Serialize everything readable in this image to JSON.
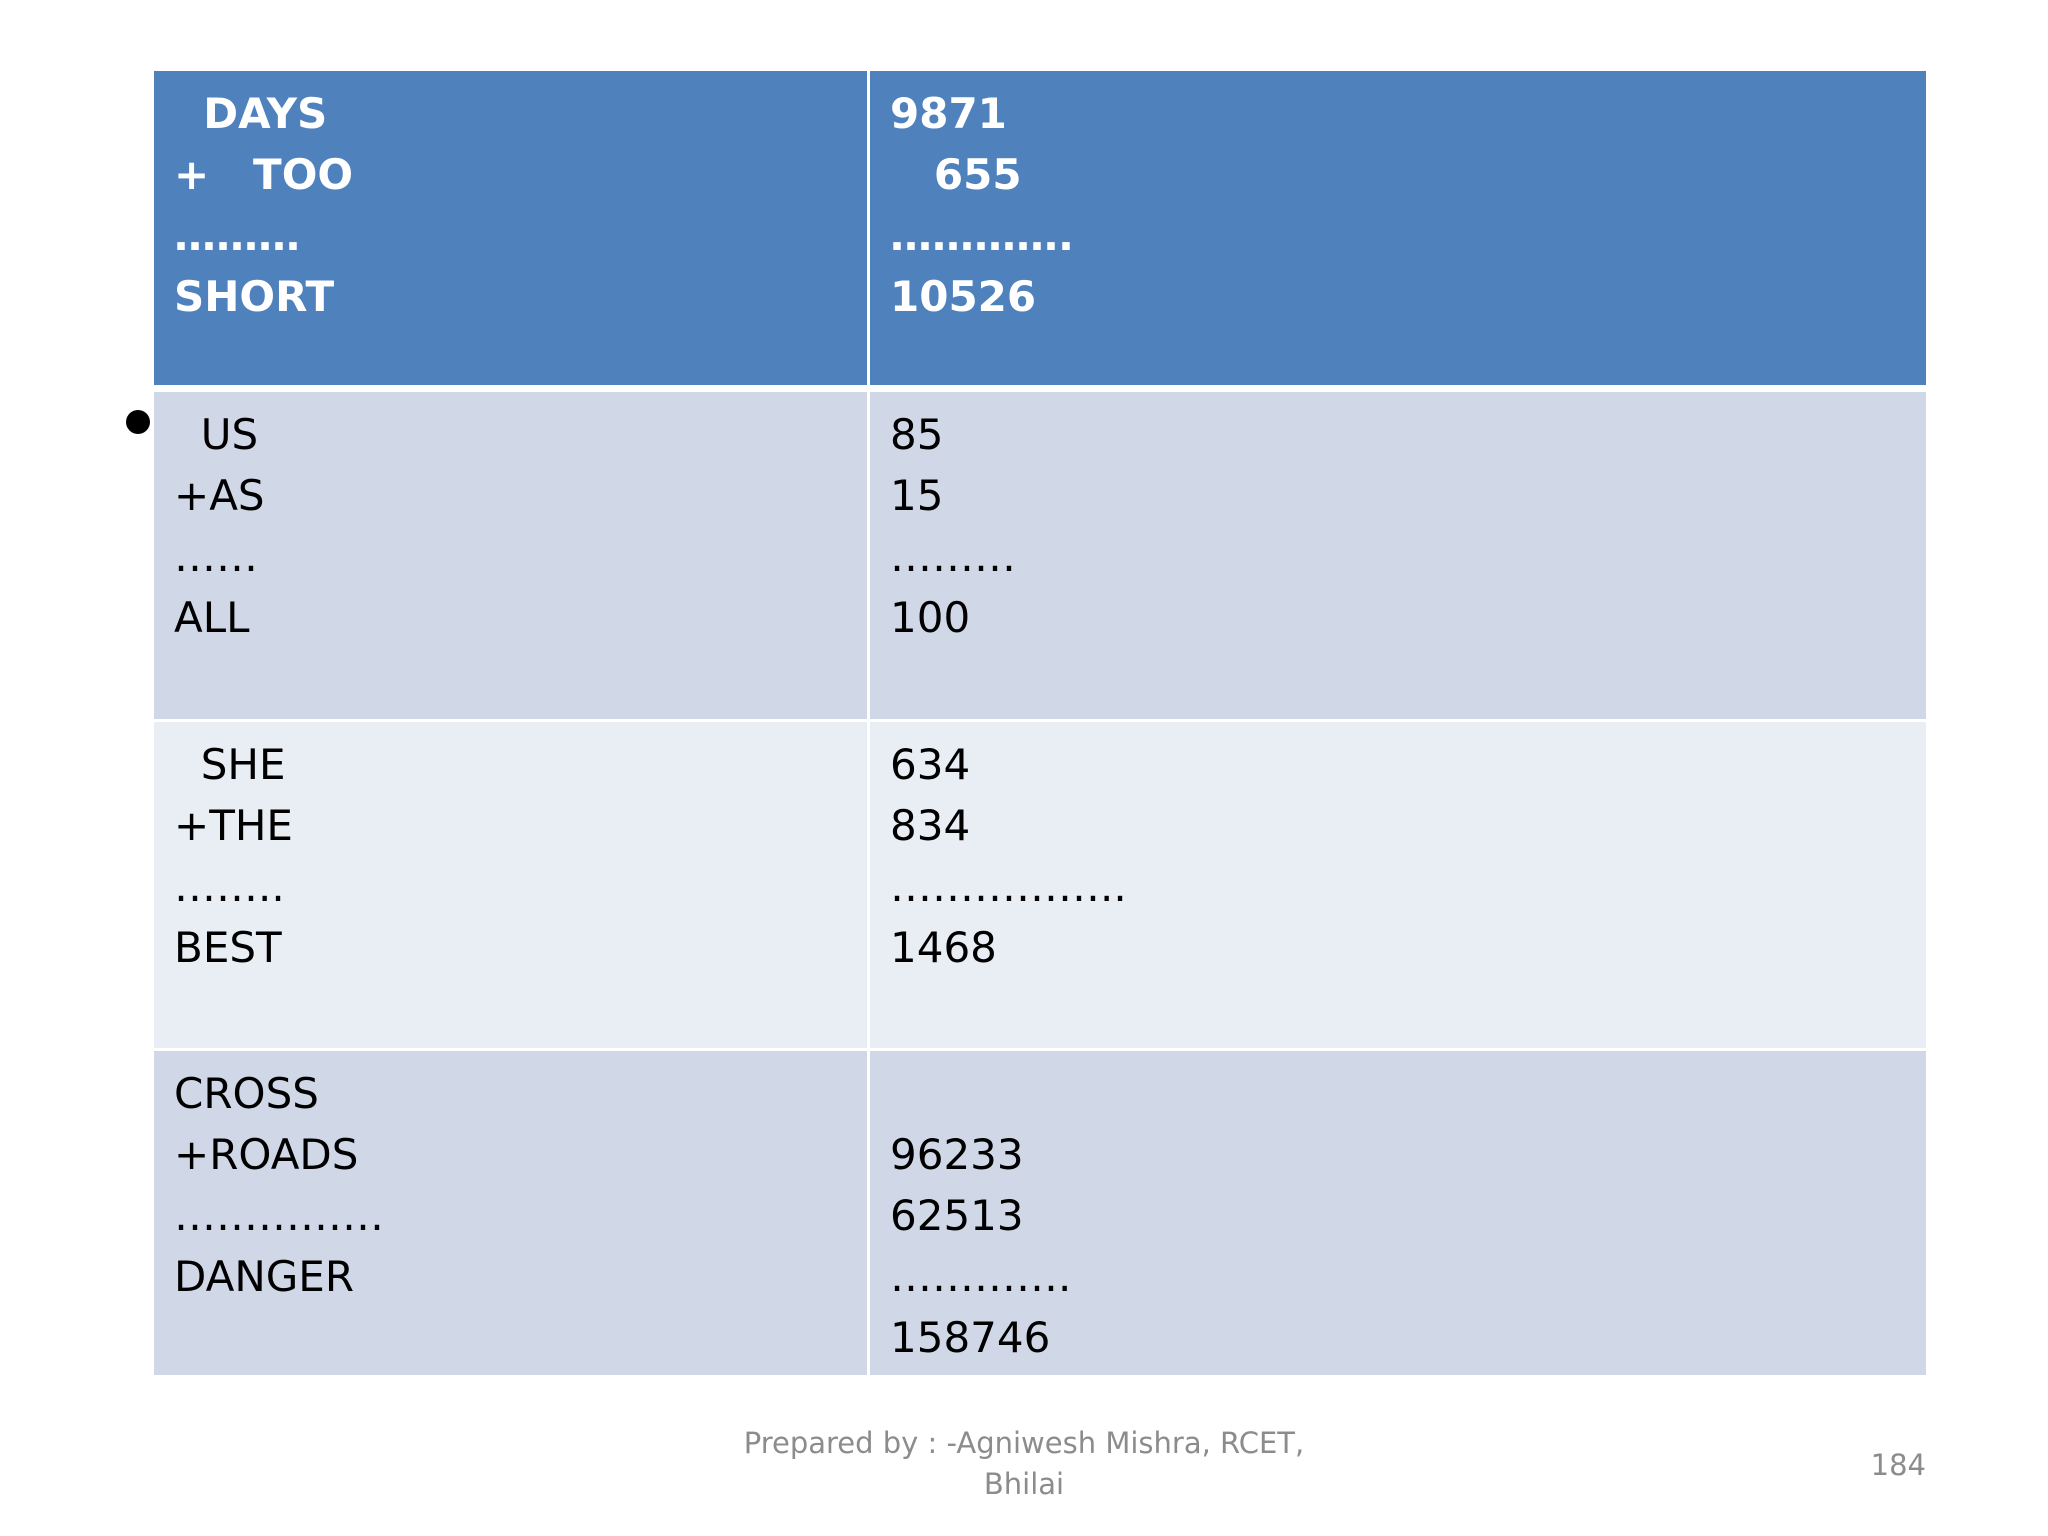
{
  "table": {
    "header": [
      [
        "  DAYS",
        "+   TOO",
        "………",
        "SHORT"
      ],
      [
        "9871",
        "   655",
        "………….",
        "10526"
      ]
    ],
    "rows": [
      [
        [
          "  US",
          "+AS",
          "……",
          "ALL"
        ],
        [
          "85",
          "15",
          "………",
          "100"
        ]
      ],
      [
        [
          "  SHE",
          "+THE",
          "……..",
          "BEST"
        ],
        [
          "634",
          "834",
          "……………..",
          "1468"
        ]
      ],
      [
        [
          "CROSS",
          "+ROADS",
          "……………",
          "DANGER"
        ],
        [
          "96233",
          "62513",
          "………….",
          "158746"
        ]
      ]
    ]
  },
  "footer": {
    "prepared_by": "Prepared by : -Agniwesh Mishra, RCET,",
    "place": "Bhilai",
    "page_number": "184"
  }
}
